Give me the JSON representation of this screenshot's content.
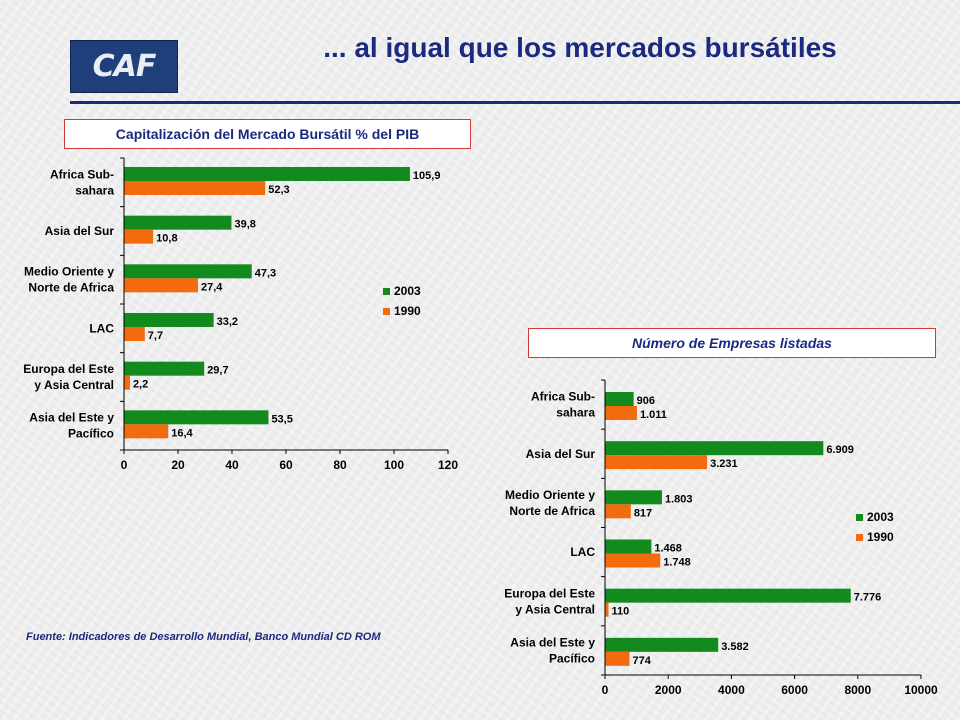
{
  "logo": {
    "text": "CAF"
  },
  "page_title": "... al igual que los mercados bursátiles",
  "source_note": "Fuente: Indicadores de Desarrollo Mundial, Banco  Mundial CD ROM",
  "colors": {
    "series_2003": "#128a1e",
    "series_1990": "#f26b0f",
    "title_text": "#1a2a80",
    "box_border": "#d23a3a"
  },
  "chart_data": [
    {
      "type": "bar",
      "orientation": "horizontal",
      "title": "Capitalización del Mercado Bursátil % del PIB",
      "categories": [
        [
          "Africa Sub-",
          "sahara"
        ],
        [
          "Asia del Sur"
        ],
        [
          "Medio Oriente y",
          "Norte de Africa"
        ],
        [
          "LAC"
        ],
        [
          "Europa del Este",
          "y Asia Central"
        ],
        [
          "Asia del Este y",
          "Pacífico"
        ]
      ],
      "series": [
        {
          "name": "2003",
          "values": [
            105.9,
            39.8,
            47.3,
            33.2,
            29.7,
            53.5
          ],
          "labels": [
            "105,9",
            "39,8",
            "47,3",
            "33,2",
            "29,7",
            "53,5"
          ]
        },
        {
          "name": "1990",
          "values": [
            52.3,
            10.8,
            27.4,
            7.7,
            2.2,
            16.4
          ],
          "labels": [
            "52,3",
            "10,8",
            "27,4",
            "7,7",
            "2,2",
            "16,4"
          ]
        }
      ],
      "xlim": [
        0,
        120
      ],
      "xticks": [
        0,
        20,
        40,
        60,
        80,
        100,
        120
      ],
      "legend_position": "right",
      "grid": false
    },
    {
      "type": "bar",
      "orientation": "horizontal",
      "title": "Número de Empresas listadas",
      "categories": [
        [
          "Africa Sub-",
          "sahara"
        ],
        [
          "Asia del Sur"
        ],
        [
          "Medio Oriente y",
          "Norte de Africa"
        ],
        [
          "LAC"
        ],
        [
          "Europa del Este",
          "y Asia Central"
        ],
        [
          "Asia del Este y",
          "Pacífico"
        ]
      ],
      "series": [
        {
          "name": "2003",
          "values": [
            906,
            6909,
            1803,
            1468,
            7776,
            3582
          ],
          "labels": [
            "906",
            "6.909",
            "1.803",
            "1.468",
            "7.776",
            "3.582"
          ]
        },
        {
          "name": "1990",
          "values": [
            1011,
            3231,
            817,
            1748,
            110,
            774
          ],
          "labels": [
            "1.011",
            "3.231",
            "817",
            "1.748",
            "110",
            "774"
          ]
        }
      ],
      "xlim": [
        0,
        10000
      ],
      "xticks": [
        0,
        2000,
        4000,
        6000,
        8000,
        10000
      ],
      "legend_position": "right",
      "grid": false
    }
  ]
}
